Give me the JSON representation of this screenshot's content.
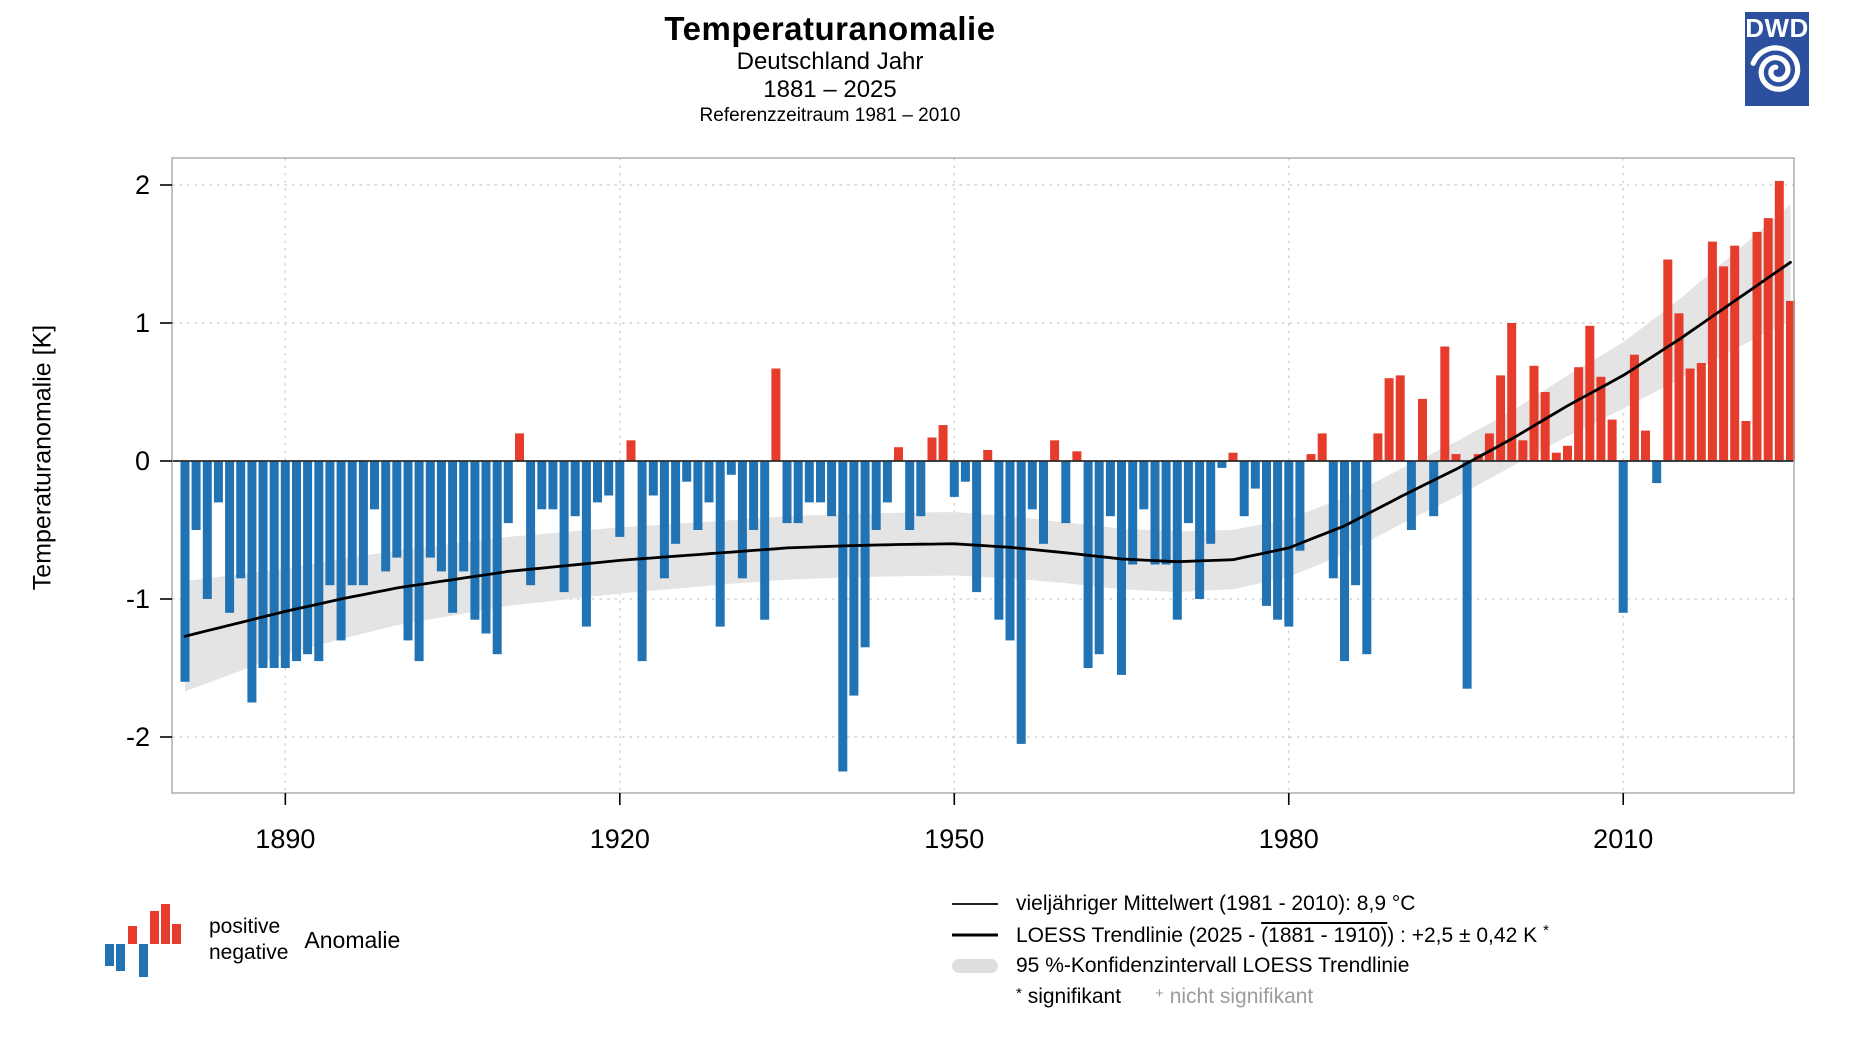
{
  "title": {
    "main": "Temperaturanomalie",
    "sub1": "Deutschland Jahr",
    "sub2": "1881 – 2025",
    "sub3": "Referenzzeitraum 1981 – 2010"
  },
  "logo": {
    "text": "DWD"
  },
  "y_axis": {
    "label": "Temperaturanomalie [K]"
  },
  "legend_left": {
    "line1": "positive",
    "line2": "negative",
    "label": "Anomalie"
  },
  "legend_right": {
    "row1": "vieljähriger Mittelwert (1981 - 2010): 8,9 °C",
    "row2_prefix": "LOESS Trendlinie (2025 - ",
    "row2_overline": "(1881 - 1910)",
    "row2_suffix": ") :  +2,5 ± 0,42 K",
    "row2_star": "*",
    "row3": "95 %-Konfidenzintervall LOESS Trendlinie",
    "row4_sig_marker": "*",
    "row4_sig": "signifikant",
    "row4_nonsig_marker": "+",
    "row4_nonsig": "nicht signifikant"
  },
  "colors": {
    "positive": "#e63c2c",
    "negative": "#2273b4",
    "band": "#e4e4e4",
    "loess": "#000000",
    "zero_line": "#2b2b2b",
    "grid": "#d2d2d2",
    "border": "#a9a9a9",
    "logo_blue": "#2c4f9e",
    "gray_text": "#9c9c9c"
  },
  "chart_data": {
    "type": "bar",
    "title": "Temperaturanomalie Deutschland Jahr 1881–2025",
    "ylabel": "Temperaturanomalie [K]",
    "unit": "K",
    "reference_period": "1981 - 2010",
    "reference_mean": "8,9 °C",
    "trend_total": "+2,5 ± 0,42 K",
    "year_start": 1881,
    "year_end": 2025,
    "ylim": [
      -2.4,
      2.2
    ],
    "yticks": [
      -2,
      -1,
      0,
      1,
      2
    ],
    "xticks": [
      1890,
      1920,
      1950,
      1980,
      2010
    ],
    "grid": "dashed",
    "values": [
      -1.6,
      -0.5,
      -1.0,
      -0.3,
      -1.1,
      -0.85,
      -1.75,
      -1.5,
      -1.5,
      -1.5,
      -1.45,
      -1.4,
      -1.45,
      -0.9,
      -1.3,
      -0.9,
      -0.9,
      -0.35,
      -0.8,
      -0.7,
      -1.3,
      -1.45,
      -0.7,
      -0.8,
      -1.1,
      -0.8,
      -1.15,
      -1.25,
      -1.4,
      -0.45,
      0.2,
      -0.9,
      -0.35,
      -0.35,
      -0.95,
      -0.4,
      -1.2,
      -0.3,
      -0.25,
      -0.55,
      0.15,
      -1.45,
      -0.25,
      -0.85,
      -0.6,
      -0.15,
      -0.5,
      -0.3,
      -1.2,
      -0.1,
      -0.85,
      -0.5,
      -1.15,
      0.67,
      -0.45,
      -0.45,
      -0.3,
      -0.3,
      -0.4,
      -2.25,
      -1.7,
      -1.35,
      -0.5,
      -0.3,
      0.1,
      -0.5,
      -0.4,
      0.17,
      0.26,
      -0.26,
      -0.15,
      -0.95,
      0.08,
      -1.15,
      -1.3,
      -2.05,
      -0.35,
      -0.6,
      0.15,
      -0.45,
      0.07,
      -1.5,
      -1.4,
      -0.4,
      -1.55,
      -0.75,
      -0.35,
      -0.75,
      -0.75,
      -1.15,
      -0.45,
      -1.0,
      -0.6,
      -0.05,
      0.06,
      -0.4,
      -0.2,
      -1.05,
      -1.15,
      -1.2,
      -0.65,
      0.05,
      0.2,
      -0.85,
      -1.45,
      -0.9,
      -1.4,
      0.2,
      0.6,
      0.62,
      -0.5,
      0.45,
      -0.4,
      0.83,
      0.05,
      -1.65,
      0.05,
      0.2,
      0.62,
      1.0,
      0.15,
      0.69,
      0.5,
      0.06,
      0.11,
      0.68,
      0.98,
      0.61,
      0.3,
      -1.1,
      0.77,
      0.22,
      -0.16,
      1.46,
      1.07,
      0.67,
      0.71,
      1.59,
      1.41,
      1.56,
      0.29,
      1.66,
      1.76,
      2.03,
      1.16
    ],
    "loess_trend": [
      [
        1881,
        -1.27
      ],
      [
        1885,
        -1.19
      ],
      [
        1890,
        -1.09
      ],
      [
        1895,
        -1.0
      ],
      [
        1900,
        -0.92
      ],
      [
        1905,
        -0.86
      ],
      [
        1910,
        -0.8
      ],
      [
        1915,
        -0.76
      ],
      [
        1920,
        -0.72
      ],
      [
        1925,
        -0.69
      ],
      [
        1930,
        -0.66
      ],
      [
        1935,
        -0.63
      ],
      [
        1940,
        -0.615
      ],
      [
        1945,
        -0.605
      ],
      [
        1950,
        -0.6
      ],
      [
        1955,
        -0.625
      ],
      [
        1960,
        -0.665
      ],
      [
        1965,
        -0.71
      ],
      [
        1970,
        -0.73
      ],
      [
        1975,
        -0.715
      ],
      [
        1980,
        -0.63
      ],
      [
        1985,
        -0.47
      ],
      [
        1990,
        -0.26
      ],
      [
        1995,
        -0.06
      ],
      [
        2000,
        0.16
      ],
      [
        2005,
        0.4
      ],
      [
        2010,
        0.62
      ],
      [
        2015,
        0.88
      ],
      [
        2020,
        1.16
      ],
      [
        2025,
        1.44
      ]
    ],
    "ci95_halfwidth": [
      [
        1881,
        0.4
      ],
      [
        1890,
        0.31
      ],
      [
        1900,
        0.27
      ],
      [
        1910,
        0.25
      ],
      [
        1920,
        0.24
      ],
      [
        1930,
        0.23
      ],
      [
        1940,
        0.23
      ],
      [
        1950,
        0.23
      ],
      [
        1960,
        0.22
      ],
      [
        1970,
        0.22
      ],
      [
        1980,
        0.21
      ],
      [
        1990,
        0.2
      ],
      [
        2000,
        0.2
      ],
      [
        2010,
        0.24
      ],
      [
        2015,
        0.29
      ],
      [
        2020,
        0.35
      ],
      [
        2025,
        0.42
      ]
    ],
    "legend_position": "bottom"
  }
}
